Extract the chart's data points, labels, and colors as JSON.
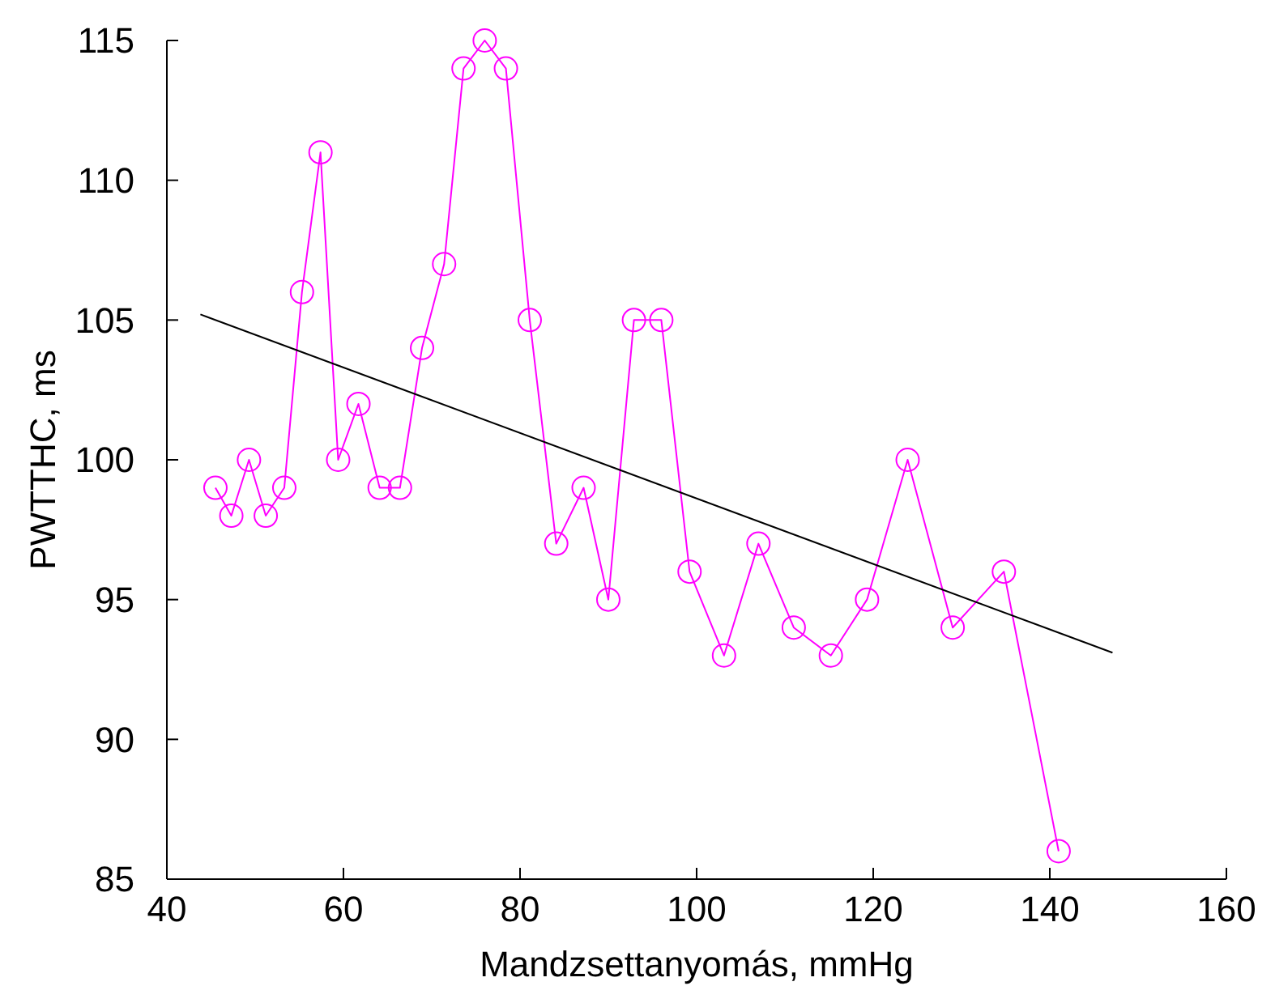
{
  "chart_data": {
    "type": "line",
    "xlabel": "Mandzsettanyomás, mmHg",
    "ylabel": "PWTTHC, ms",
    "xlim": [
      40,
      160
    ],
    "xticks": [
      40,
      60,
      80,
      100,
      120,
      140,
      160
    ],
    "ylim": [
      85,
      115
    ],
    "yticks": [
      85,
      90,
      95,
      100,
      105,
      110,
      115
    ],
    "grid": false,
    "series": [
      {
        "color": "#ff00ff",
        "marker": "circle",
        "x": [
          45.5,
          47.3,
          49.3,
          51.2,
          53.3,
          55.3,
          57.4,
          59.4,
          61.7,
          64.1,
          66.4,
          68.9,
          71.4,
          73.6,
          76.0,
          78.4,
          81.1,
          84.1,
          87.2,
          90.0,
          92.9,
          96.0,
          99.2,
          103.1,
          107.0,
          111.0,
          115.2,
          119.3,
          123.9,
          129.0,
          134.8,
          141.0
        ],
        "values": [
          99,
          98,
          100,
          98,
          99,
          106,
          111,
          100,
          102,
          99,
          99,
          104,
          107,
          114,
          115,
          114,
          105,
          97,
          99,
          95,
          105,
          105,
          96,
          93,
          97,
          94,
          93,
          95,
          100,
          94,
          96,
          86
        ]
      },
      {
        "color": "#000000",
        "marker": "none",
        "x": [
          43.8,
          147.1
        ],
        "values": [
          105.2,
          93.1
        ]
      }
    ]
  }
}
